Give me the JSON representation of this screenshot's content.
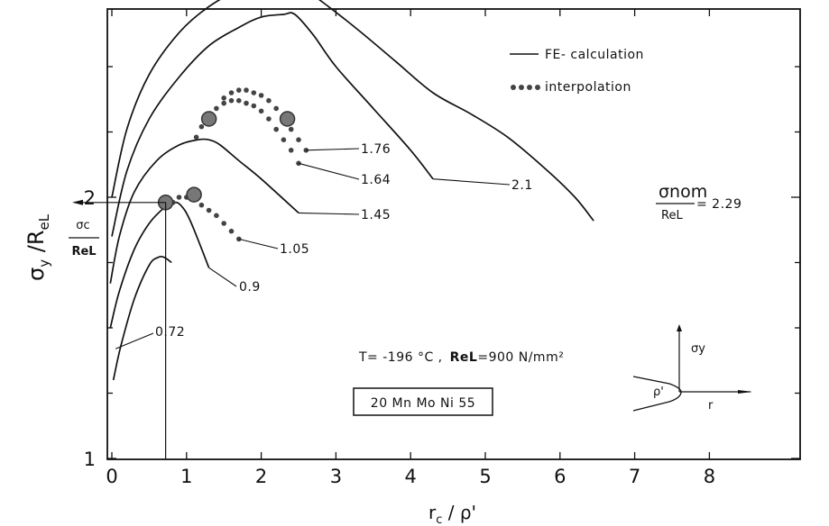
{
  "chart_data": {
    "type": "line",
    "xlabel": "r_c / ρ'",
    "ylabel": "σ_y / R_eL",
    "xlim": [
      -0.1,
      8
    ],
    "ylim": [
      1,
      2.9
    ],
    "x_ticks": [
      "0",
      "1",
      "2",
      "3",
      "4",
      "5",
      "6",
      "7",
      "8"
    ],
    "y_ticks": [
      "1",
      "2"
    ],
    "grid": false,
    "legend_position": "top-right",
    "legend": [
      {
        "label": "FE- calculation",
        "style": "solid"
      },
      {
        "label": "interpolation",
        "style": "dotted"
      }
    ],
    "series": [
      {
        "name": "0.72",
        "style": "solid",
        "label": "0.72",
        "x": [
          0.02,
          0.12,
          0.3,
          0.5,
          0.62,
          0.7,
          0.8
        ],
        "y": [
          1.3,
          1.43,
          1.61,
          1.74,
          1.77,
          1.77,
          1.75
        ]
      },
      {
        "name": "0.9",
        "style": "solid",
        "label": "0.9",
        "x": [
          -0.02,
          0.1,
          0.3,
          0.5,
          0.7,
          0.82,
          0.92,
          1.05,
          1.3
        ],
        "y": [
          1.5,
          1.64,
          1.8,
          1.9,
          1.96,
          1.98,
          1.97,
          1.91,
          1.73
        ]
      },
      {
        "name": "1.45",
        "style": "solid",
        "label": "1.45",
        "x": [
          -0.02,
          0.1,
          0.3,
          0.6,
          0.9,
          1.15,
          1.3,
          1.45,
          1.7,
          2.0,
          2.5
        ],
        "y": [
          1.67,
          1.85,
          2.02,
          2.14,
          2.2,
          2.22,
          2.22,
          2.2,
          2.14,
          2.07,
          1.94
        ]
      },
      {
        "name": "2.1",
        "style": "solid",
        "label": "2.1",
        "x": [
          0.0,
          0.2,
          0.5,
          0.9,
          1.3,
          1.7,
          2.0,
          2.3,
          2.45,
          2.7,
          3.0,
          3.5,
          4.0,
          4.3
        ],
        "y": [
          1.85,
          2.1,
          2.3,
          2.46,
          2.58,
          2.65,
          2.69,
          2.7,
          2.7,
          2.62,
          2.5,
          2.34,
          2.18,
          2.07
        ]
      },
      {
        "name": "σ_nom/R_eL = 2.29",
        "style": "solid",
        "label": "2.29",
        "x": [
          0.0,
          0.2,
          0.5,
          0.9,
          1.3,
          1.7,
          2.1,
          2.4,
          2.6,
          2.9,
          3.3,
          3.8,
          4.3,
          4.8,
          5.3,
          5.8,
          6.2,
          6.45
        ],
        "y": [
          2.0,
          2.26,
          2.47,
          2.63,
          2.73,
          2.79,
          2.8,
          2.8,
          2.79,
          2.73,
          2.64,
          2.52,
          2.4,
          2.32,
          2.23,
          2.11,
          2.0,
          1.91
        ]
      },
      {
        "name": "1.05",
        "style": "dotted",
        "label": "1.05",
        "x": [
          0.82,
          0.9,
          1.0,
          1.1,
          1.2,
          1.3,
          1.4,
          1.5,
          1.6,
          1.7
        ],
        "y": [
          1.98,
          2.0,
          2.0,
          1.99,
          1.97,
          1.95,
          1.93,
          1.9,
          1.87,
          1.84
        ]
      },
      {
        "name": "1.64",
        "style": "dotted",
        "label": "1.64",
        "x": [
          1.13,
          1.2,
          1.3,
          1.4,
          1.5,
          1.6,
          1.7,
          1.8,
          1.9,
          2.0,
          2.1,
          2.2,
          2.3,
          2.4,
          2.5
        ],
        "y": [
          2.23,
          2.27,
          2.31,
          2.34,
          2.36,
          2.37,
          2.37,
          2.36,
          2.35,
          2.33,
          2.3,
          2.26,
          2.22,
          2.18,
          2.13
        ]
      },
      {
        "name": "1.76",
        "style": "dotted",
        "label": "1.76",
        "x": [
          1.5,
          1.6,
          1.7,
          1.8,
          1.9,
          2.0,
          2.1,
          2.2,
          2.3,
          2.4,
          2.5,
          2.6
        ],
        "y": [
          2.38,
          2.4,
          2.41,
          2.41,
          2.4,
          2.39,
          2.37,
          2.34,
          2.3,
          2.26,
          2.22,
          2.18
        ]
      }
    ],
    "critical_points": [
      {
        "x": 0.72,
        "y": 1.98
      },
      {
        "x": 1.1,
        "y": 2.01
      },
      {
        "x": 1.3,
        "y": 2.3
      },
      {
        "x": 2.35,
        "y": 2.3
      }
    ],
    "sigma_c_arrow": {
      "y": 1.98,
      "x_from": 0.72
    },
    "vertical_rule_x": 0.72
  },
  "labels": {
    "y_label_sigma": "σ",
    "y_label_sub": "y",
    "y_label_mid": " /R",
    "y_label_sub2": "eL",
    "x_label_r": "r",
    "x_label_sub": "c",
    "x_label_rho": " / ρ'",
    "sigma_c_num": "σc",
    "sigma_c_den": "ReL",
    "nom_num": "σnom",
    "nom_den": "ReL",
    "nom_value": "= 2.29",
    "temperature": "T= -196 °C  ,",
    "rel_label": "ReL",
    "rel_value": "=900 N/mm²",
    "material": "20 Mn Mo Ni 55",
    "inset_sigma": "σy",
    "inset_rho": "ρ'",
    "inset_r": "r"
  }
}
